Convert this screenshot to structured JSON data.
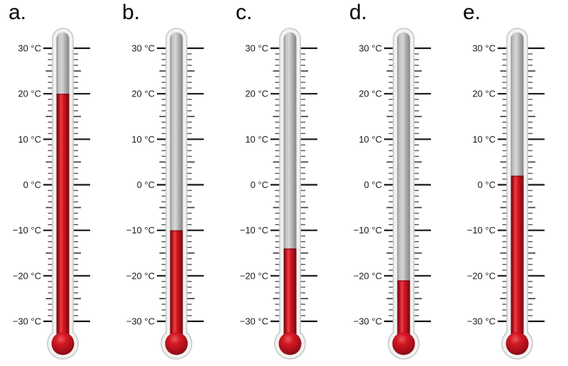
{
  "figure": {
    "unit": "°C",
    "scale_max": 30,
    "scale_min": -30,
    "major_step": 10,
    "minor_divisions_per_major": 8,
    "axis_labels": [
      "30 °C",
      "20 °C",
      "10 °C",
      "0 °C",
      "−10 °C",
      "−20 °C",
      "−30 °C"
    ]
  },
  "thermometers": [
    {
      "id": "a",
      "label": "a.",
      "value_c": 20
    },
    {
      "id": "b",
      "label": "b.",
      "value_c": -10
    },
    {
      "id": "c",
      "label": "c.",
      "value_c": -14
    },
    {
      "id": "d",
      "label": "d.",
      "value_c": -21
    },
    {
      "id": "e",
      "label": "e.",
      "value_c": 2
    }
  ],
  "colors": {
    "background": "#ffffff",
    "mercury_red": "#c81222",
    "mercury_highlight": "#ee3f47",
    "mercury_dark": "#72080f",
    "bulb_highlight": "#f0545c",
    "tube_grey_light": "#d6d6d6",
    "tube_grey_dark": "#8a8a8a",
    "casing_fill": "#f2f2f2",
    "casing_border": "#c9c9c9",
    "tick_major": "#151515",
    "tick_medium": "#3f3f3f",
    "tick_minor": "#555555",
    "text": "#1a1a1a"
  }
}
